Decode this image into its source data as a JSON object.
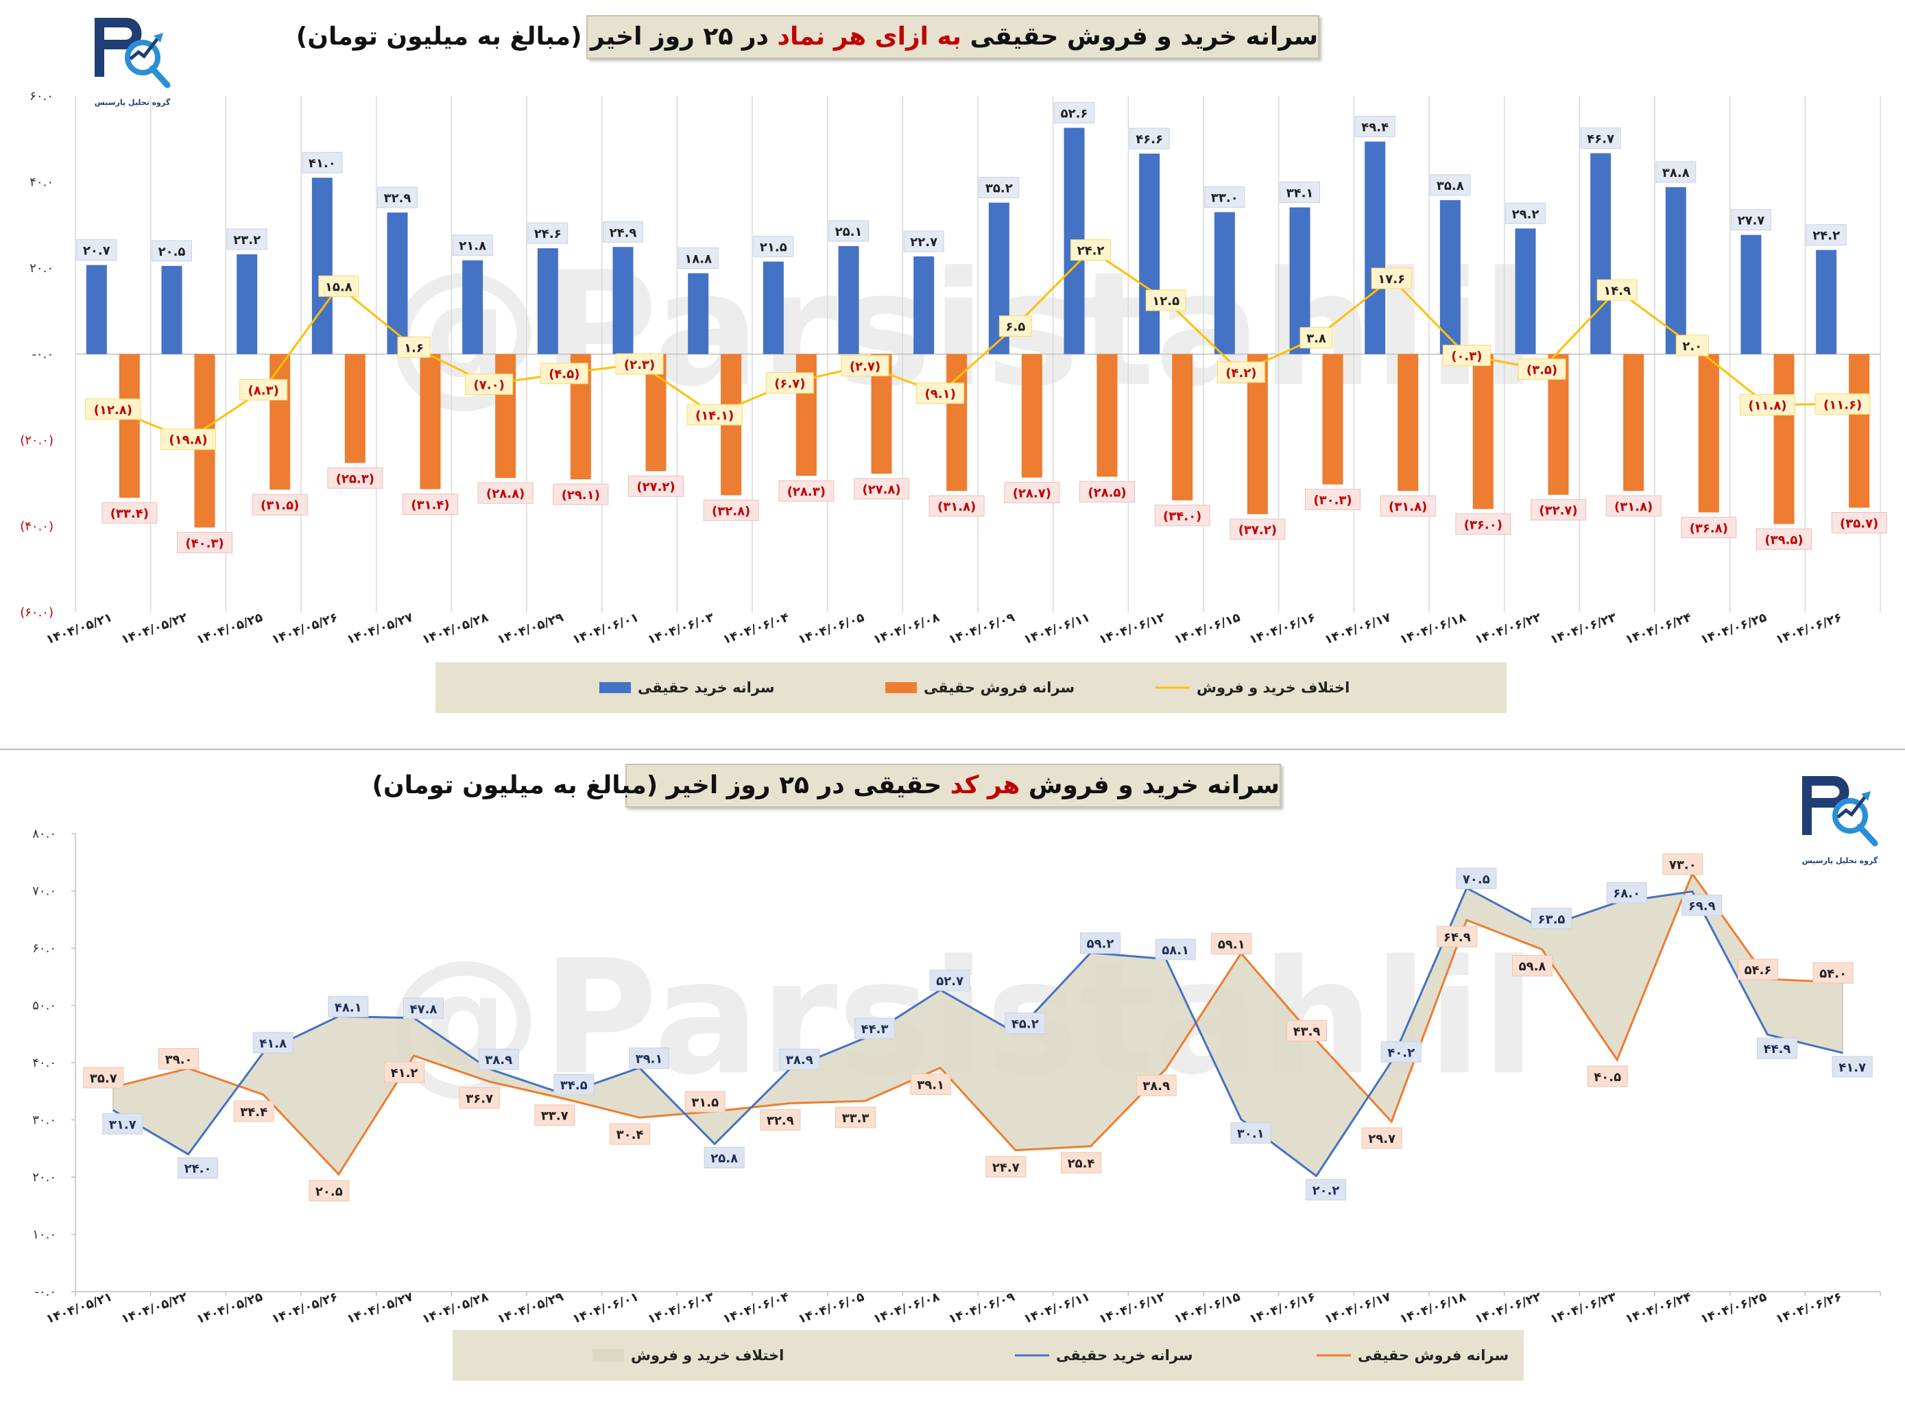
{
  "top": {
    "title_pre": "سرانه خرید و فروش حقیقی ",
    "title_hl": "به ازای هر نماد",
    "title_post": " در ۲۵ روز اخیر (مبالغ به میلیون تومان)",
    "logo_caption": "گروه تحلیل پارسیس"
  },
  "bottom": {
    "title_pre": "سرانه خرید و فروش ",
    "title_hl": "هر کد",
    "title_post": " حقیقی در ۲۵ روز اخیر (مبالغ به میلیون تومان)",
    "logo_caption": "گروه تحلیل پارسیس"
  },
  "watermark": "@Parsistahlil",
  "colors": {
    "buy": "#4472c4",
    "sell": "#ed7d31",
    "diff": "#ffc000",
    "title_bg": "#e7e1cf",
    "highlight": "#c00000",
    "neg_label": "#c00000"
  },
  "chart_data": [
    {
      "type": "bar",
      "title": "سرانه خرید و فروش حقیقی به ازای هر نماد در ۲۵ روز اخیر (مبالغ به میلیون تومان)",
      "categories": [
        "۱۴۰۴/۰۵/۲۱",
        "۱۴۰۴/۰۵/۲۲",
        "۱۴۰۴/۰۵/۲۵",
        "۱۴۰۴/۰۵/۲۶",
        "۱۴۰۴/۰۵/۲۷",
        "۱۴۰۴/۰۵/۲۸",
        "۱۴۰۴/۰۵/۲۹",
        "۱۴۰۴/۰۶/۰۱",
        "۱۴۰۴/۰۶/۰۳",
        "۱۴۰۴/۰۶/۰۴",
        "۱۴۰۴/۰۶/۰۵",
        "۱۴۰۴/۰۶/۰۸",
        "۱۴۰۴/۰۶/۰۹",
        "۱۴۰۴/۰۶/۱۱",
        "۱۴۰۴/۰۶/۱۲",
        "۱۴۰۴/۰۶/۱۵",
        "۱۴۰۴/۰۶/۱۶",
        "۱۴۰۴/۰۶/۱۷",
        "۱۴۰۴/۰۶/۱۸",
        "۱۴۰۴/۰۶/۲۲",
        "۱۴۰۴/۰۶/۲۳",
        "۱۴۰۴/۰۶/۲۴",
        "۱۴۰۴/۰۶/۲۵",
        "۱۴۰۴/۰۶/۲۶"
      ],
      "ylim": [
        -60,
        60
      ],
      "yticks": [
        -60,
        -40,
        -20,
        0,
        20,
        40,
        60
      ],
      "ytick_labels": [
        "(۶۰.۰)",
        "(۴۰.۰)",
        "(۲۰.۰)",
        "-۰.۰",
        "۲۰.۰",
        "۴۰.۰",
        "۶۰.۰"
      ],
      "grid": "vertical",
      "legend_position": "bottom",
      "series": [
        {
          "name": "سرانه خرید حقیقی",
          "kind": "bar",
          "color": "#4472c4",
          "values": [
            20.7,
            20.5,
            23.2,
            41.0,
            32.9,
            21.8,
            24.6,
            24.9,
            18.8,
            21.5,
            25.1,
            22.7,
            35.2,
            52.6,
            46.6,
            33.0,
            34.1,
            49.4,
            35.8,
            29.2,
            46.7,
            38.8,
            27.7,
            24.2
          ],
          "labels": [
            "۲۰.۷",
            "۲۰.۵",
            "۲۳.۲",
            "۴۱.۰",
            "۳۲.۹",
            "۲۱.۸",
            "۲۴.۶",
            "۲۴.۹",
            "۱۸.۸",
            "۲۱.۵",
            "۲۵.۱",
            "۲۲.۷",
            "۳۵.۲",
            "۵۲.۶",
            "۴۶.۶",
            "۳۳.۰",
            "۳۴.۱",
            "۴۹.۴",
            "۳۵.۸",
            "۲۹.۲",
            "۴۶.۷",
            "۳۸.۸",
            "۲۷.۷",
            "۲۴.۲"
          ]
        },
        {
          "name": "سرانه فروش حقیقی",
          "kind": "bar",
          "color": "#ed7d31",
          "values": [
            -33.4,
            -40.3,
            -31.5,
            -25.3,
            -31.4,
            -28.8,
            -29.1,
            -27.2,
            -32.8,
            -28.3,
            -27.8,
            -31.8,
            -28.7,
            -28.5,
            -34.0,
            -37.2,
            -30.3,
            -31.8,
            -36.0,
            -32.7,
            -31.8,
            -36.8,
            -39.5,
            -35.7
          ],
          "labels": [
            "(۳۳.۴)",
            "(۴۰.۳)",
            "(۳۱.۵)",
            "(۲۵.۳)",
            "(۳۱.۴)",
            "(۲۸.۸)",
            "(۲۹.۱)",
            "(۲۷.۲)",
            "(۳۲.۸)",
            "(۲۸.۳)",
            "(۲۷.۸)",
            "(۳۱.۸)",
            "(۲۸.۷)",
            "(۲۸.۵)",
            "(۳۴.۰)",
            "(۳۷.۲)",
            "(۳۰.۳)",
            "(۳۱.۸)",
            "(۳۶.۰)",
            "(۳۲.۷)",
            "(۳۱.۸)",
            "(۳۶.۸)",
            "(۳۹.۵)",
            "(۳۵.۷)"
          ]
        },
        {
          "name": "اختلاف خرید و فروش",
          "kind": "line",
          "color": "#ffc000",
          "values": [
            -12.8,
            -19.8,
            -8.3,
            15.8,
            1.6,
            -7.0,
            -4.5,
            -2.3,
            -14.1,
            -6.7,
            -2.7,
            -9.1,
            6.5,
            24.2,
            12.5,
            -4.2,
            3.8,
            17.6,
            -0.3,
            -3.5,
            14.9,
            2.0,
            -11.8,
            -11.6
          ],
          "labels": [
            "(۱۲.۸)",
            "(۱۹.۸)",
            "(۸.۳)",
            "۱۵.۸",
            "۱.۶",
            "(۷.۰)",
            "(۴.۵)",
            "(۲.۳)",
            "(۱۴.۱)",
            "(۶.۷)",
            "(۲.۷)",
            "(۹.۱)",
            "۶.۵",
            "۲۴.۲",
            "۱۲.۵",
            "(۴.۲)",
            "۳.۸",
            "۱۷.۶",
            "(۰.۳)",
            "(۳.۵)",
            "۱۴.۹",
            "۲.۰",
            "(۱۱.۸)",
            "(۱۱.۶)"
          ]
        }
      ]
    },
    {
      "type": "line",
      "title": "سرانه خرید و فروش هر کد حقیقی در ۲۵ روز اخیر (مبالغ به میلیون تومان)",
      "categories": [
        "۱۴۰۴/۰۵/۲۱",
        "۱۴۰۴/۰۵/۲۲",
        "۱۴۰۴/۰۵/۲۵",
        "۱۴۰۴/۰۵/۲۶",
        "۱۴۰۴/۰۵/۲۷",
        "۱۴۰۴/۰۵/۲۸",
        "۱۴۰۴/۰۵/۲۹",
        "۱۴۰۴/۰۶/۰۱",
        "۱۴۰۴/۰۶/۰۳",
        "۱۴۰۴/۰۶/۰۴",
        "۱۴۰۴/۰۶/۰۵",
        "۱۴۰۴/۰۶/۰۸",
        "۱۴۰۴/۰۶/۰۹",
        "۱۴۰۴/۰۶/۱۱",
        "۱۴۰۴/۰۶/۱۲",
        "۱۴۰۴/۰۶/۱۵",
        "۱۴۰۴/۰۶/۱۶",
        "۱۴۰۴/۰۶/۱۷",
        "۱۴۰۴/۰۶/۱۸",
        "۱۴۰۴/۰۶/۲۲",
        "۱۴۰۴/۰۶/۲۳",
        "۱۴۰۴/۰۶/۲۴",
        "۱۴۰۴/۰۶/۲۵",
        "۱۴۰۴/۰۶/۲۶"
      ],
      "ylim": [
        0,
        80
      ],
      "yticks": [
        0,
        10,
        20,
        30,
        40,
        50,
        60,
        70,
        80
      ],
      "ytick_labels": [
        "-۰.۰",
        "۱۰.۰",
        "۲۰.۰",
        "۳۰.۰",
        "۴۰.۰",
        "۵۰.۰",
        "۶۰.۰",
        "۷۰.۰",
        "۸۰.۰"
      ],
      "grid": "none",
      "legend_position": "bottom",
      "series": [
        {
          "name": "سرانه خرید حقیقی",
          "kind": "line",
          "color": "#4472c4",
          "values": [
            31.7,
            24.0,
            41.8,
            48.1,
            47.8,
            38.9,
            34.5,
            39.1,
            25.8,
            38.9,
            44.3,
            52.7,
            45.2,
            59.2,
            58.1,
            30.1,
            20.2,
            40.2,
            70.5,
            63.5,
            68.0,
            69.9,
            44.9,
            41.7
          ],
          "labels": [
            "۳۱.۷",
            "۲۴.۰",
            "۴۱.۸",
            "۴۸.۱",
            "۴۷.۸",
            "۳۸.۹",
            "۳۴.۵",
            "۳۹.۱",
            "۲۵.۸",
            "۳۸.۹",
            "۴۴.۳",
            "۵۲.۷",
            "۴۵.۲",
            "۵۹.۲",
            "۵۸.۱",
            "۳۰.۱",
            "۲۰.۲",
            "۴۰.۲",
            "۷۰.۵",
            "۶۳.۵",
            "۶۸.۰",
            "۶۹.۹",
            "۴۴.۹",
            "۴۱.۷"
          ]
        },
        {
          "name": "سرانه فروش حقیقی",
          "kind": "line",
          "color": "#ed7d31",
          "values": [
            35.7,
            39.0,
            34.4,
            20.5,
            41.2,
            36.7,
            33.7,
            30.4,
            31.5,
            32.9,
            33.3,
            39.1,
            24.7,
            25.4,
            38.9,
            59.1,
            43.9,
            29.7,
            64.9,
            59.8,
            40.5,
            73.0,
            54.6,
            54.0
          ],
          "labels": [
            "۳۵.۷",
            "۳۹.۰",
            "۳۴.۴",
            "۲۰.۵",
            "۴۱.۲",
            "۳۶.۷",
            "۳۳.۷",
            "۳۰.۴",
            "۳۱.۵",
            "۳۲.۹",
            "۳۳.۳",
            "۳۹.۱",
            "۲۴.۷",
            "۲۵.۴",
            "۳۸.۹",
            "۵۹.۱",
            "۴۳.۹",
            "۲۹.۷",
            "۶۴.۹",
            "۵۹.۸",
            "۴۰.۵",
            "۷۳.۰",
            "۵۴.۶",
            "۵۴.۰"
          ]
        },
        {
          "name": "اختلاف خرید و فروش",
          "kind": "area",
          "color": "#ddd8c4"
        }
      ]
    }
  ]
}
